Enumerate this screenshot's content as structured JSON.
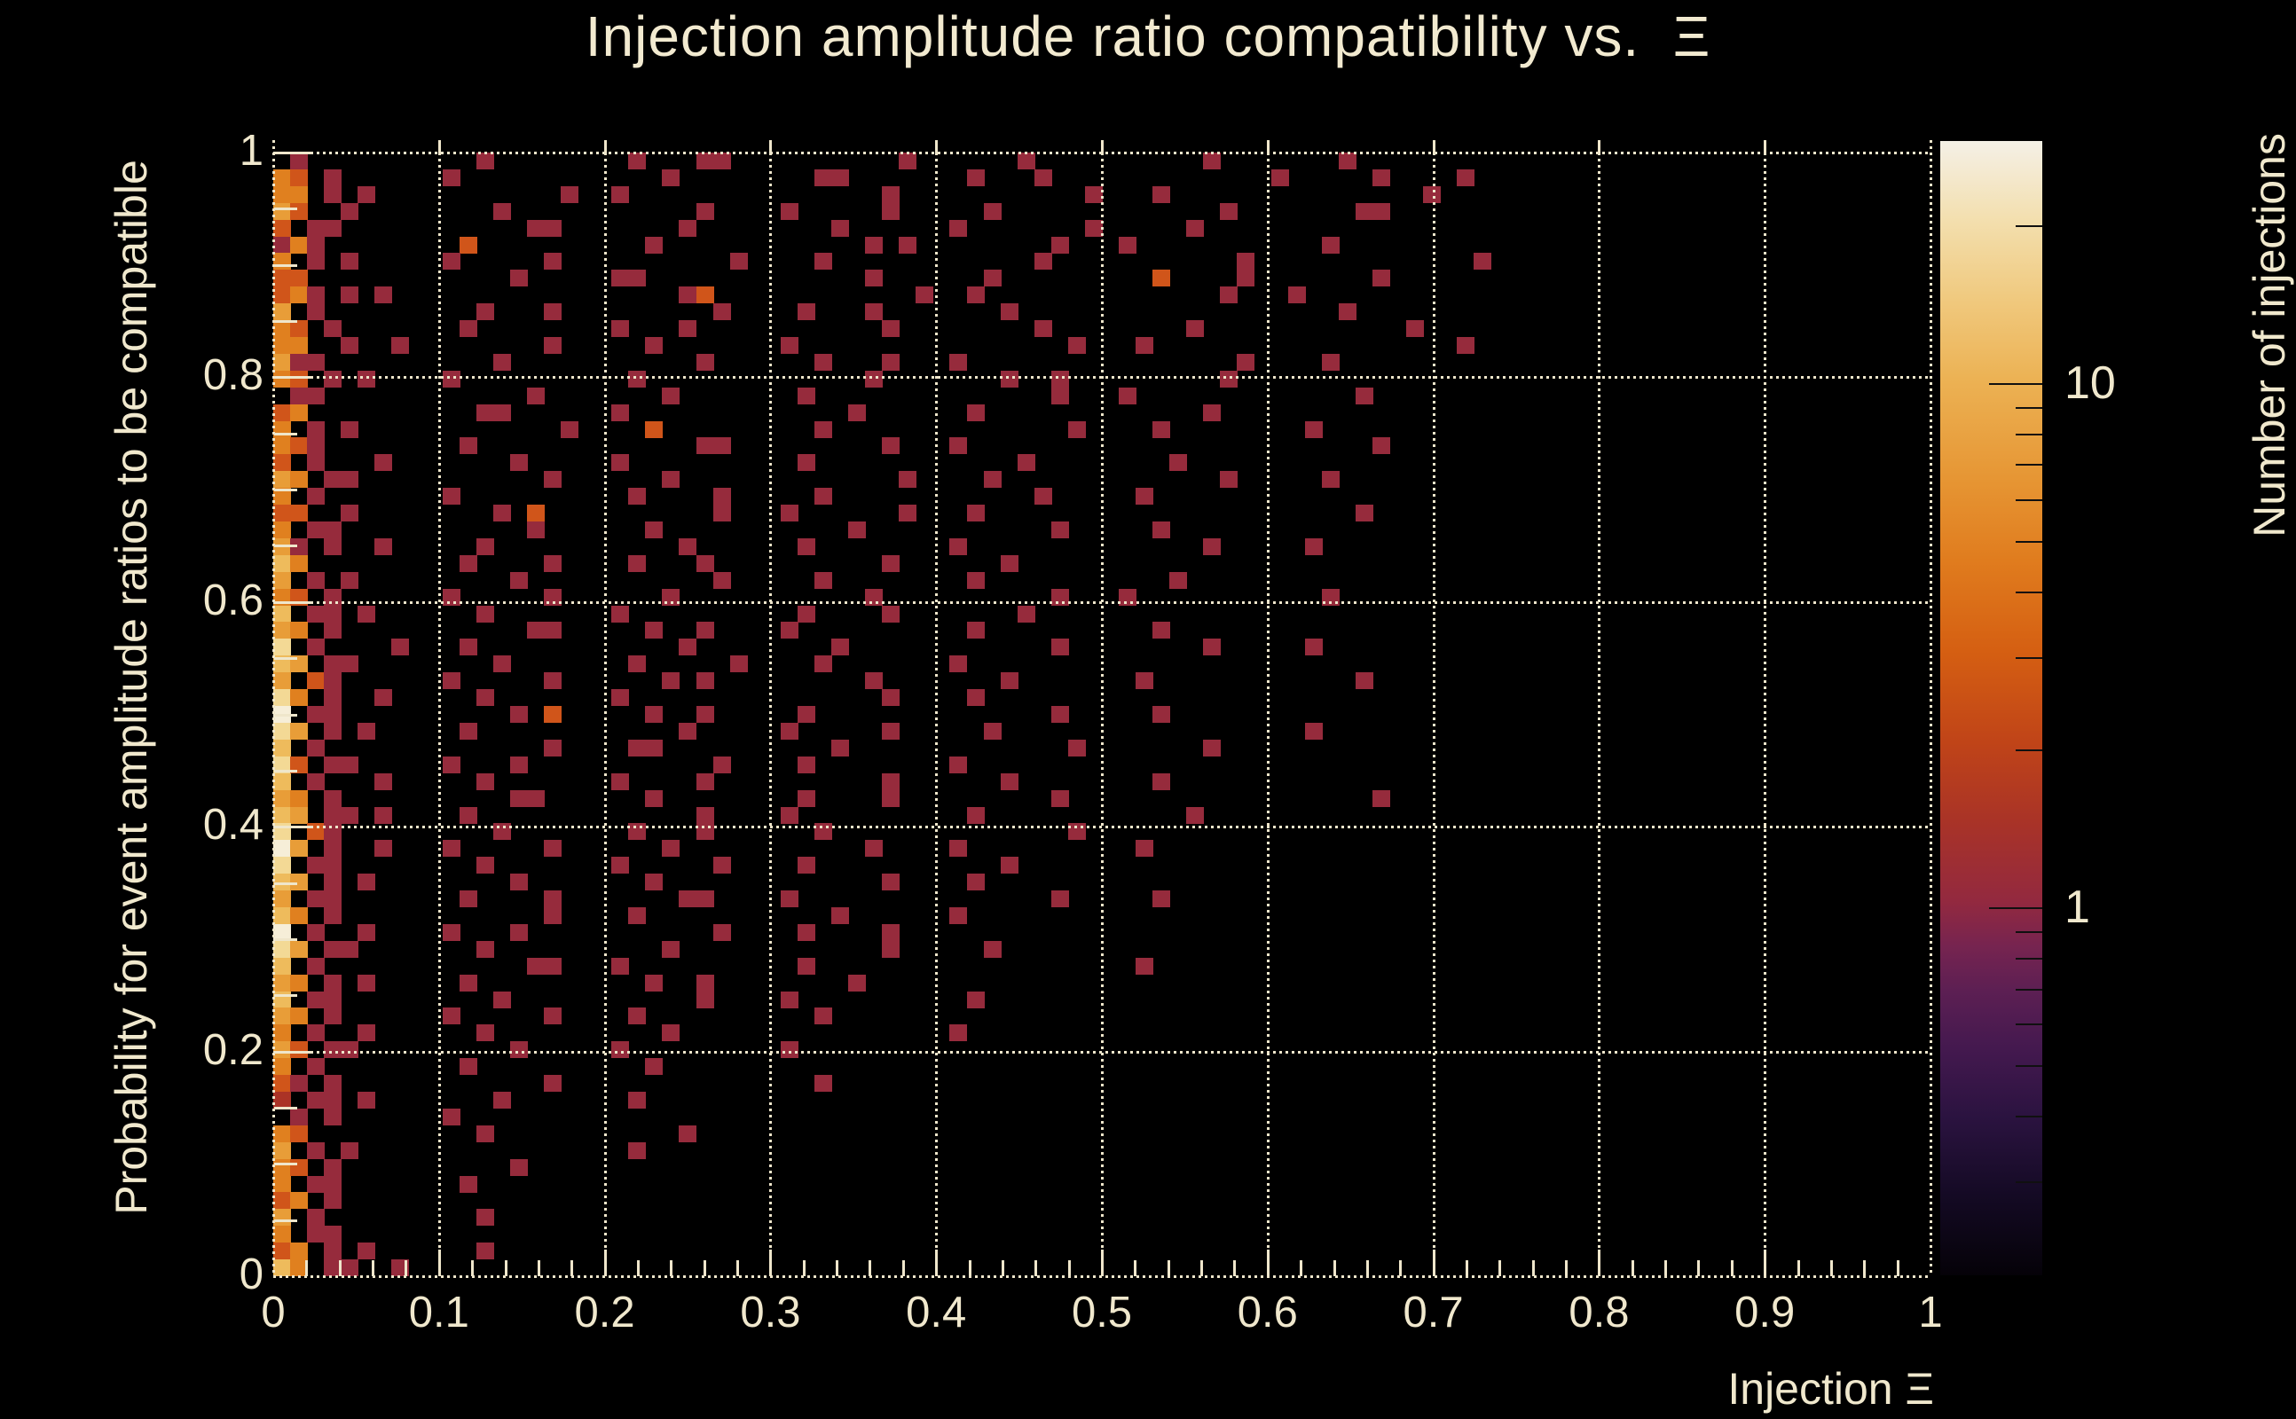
{
  "title": "Injection amplitude ratio compatibility vs.  Ξ",
  "axes": {
    "x": {
      "title": "Injection Ξ",
      "ticks": [
        {
          "v": 0,
          "label": "0"
        },
        {
          "v": 0.1,
          "label": "0.1"
        },
        {
          "v": 0.2,
          "label": "0.2"
        },
        {
          "v": 0.3,
          "label": "0.3"
        },
        {
          "v": 0.4,
          "label": "0.4"
        },
        {
          "v": 0.5,
          "label": "0.5"
        },
        {
          "v": 0.6,
          "label": "0.6"
        },
        {
          "v": 0.7,
          "label": "0.7"
        },
        {
          "v": 0.8,
          "label": "0.8"
        },
        {
          "v": 0.9,
          "label": "0.9"
        },
        {
          "v": 1,
          "label": "1"
        }
      ],
      "minor_step": 0.02,
      "range": [
        0,
        1
      ]
    },
    "y": {
      "title": "Probability for event amplitude ratios to be compatible",
      "ticks": [
        {
          "v": 0,
          "label": "0"
        },
        {
          "v": 0.2,
          "label": "0.2"
        },
        {
          "v": 0.4,
          "label": "0.4"
        },
        {
          "v": 0.6,
          "label": "0.6"
        },
        {
          "v": 0.8,
          "label": "0.8"
        },
        {
          "v": 1,
          "label": "1"
        }
      ],
      "minor_step": 0.05,
      "range": [
        0,
        1
      ]
    },
    "z": {
      "title": "Number of injections",
      "scale": "log",
      "major_ticks": [
        {
          "v": 10,
          "label": "10"
        },
        {
          "v": 1,
          "label": "1"
        }
      ],
      "minor_ticks": [
        20,
        9,
        8,
        7,
        6,
        5,
        4,
        3,
        2,
        0.9,
        0.8,
        0.7,
        0.6,
        0.5,
        0.4,
        0.3
      ],
      "range": [
        0.2,
        29
      ]
    }
  },
  "chart_data": {
    "type": "heatmap",
    "title": "Injection amplitude ratio compatibility vs. Ξ",
    "xlabel": "Injection Ξ",
    "ylabel": "Probability for event amplitude ratios to be compatible",
    "zlabel": "Number of injections",
    "xlim": [
      0,
      1
    ],
    "ylim": [
      0,
      1
    ],
    "grid": "dotted",
    "zscale": "log",
    "grid_size": {
      "cols": 98,
      "rows": 67
    },
    "legend_note": "cell level chars 1-8 map to counts 1,2,3,5,7,10,15,20+",
    "levels": {
      "1": "#962b3c",
      "2": "#ab3326",
      "3": "#d0551a",
      "4": "#e0801f",
      "5": "#e89d38",
      "6": "#eebb5c",
      "7": "#f3d995",
      "8": "#f6eed8"
    },
    "rows": [
      ".1........ ..1....... .1...11... .......1.. ....1..... .....1.... ...1...... ......",
      "43.1...... 1......... ...1...... ..11...... .1...1.... .........1 .....1.... 1.....",
      "44.1.1.... .......1.. 1......... ......1... ........1. ..1....... ........1. ......",
      "53..1..... ...1...... .....1.... 1.....1... ..1....... ......1... ....11.... ......",
      "3.11...... .....11... ....1..... ...1...... 1.......1. ....1..... .......... ......",
      "141....... .3........ ..1....... .....1.1.. ......1... 1......... ..1....... ......",
      "4.1.1..... 1.....1... .......1.. ..1....... .....1.... .......1.. .......... .1....",
      "33........ ....1..... 11........ .....1.... ..1....... ..3....1.. .....1.... ......",
      "341.1.1... .......... ....13.... ........1. .1........ ......1... 1......... ......",
      "5.1....... ..1...1... ......1... .1...1.... ...1...... .......... ...1...... ......",
      "43.1...... .1........ 1...1..... ......1... .....1.... ....1..... .......1.. ......",
      "44..1..1.. ......1... ..1....... 1......... .......1.. .1........ .......... 1.....",
      "511....... ...1...... .....1.... ..1...1... 1......... .......1.. ..1....... ......",
      "43.1.1.... 1......... .1........ .....1.... ...1..1... ......1... .......... ......",
      ".11....... .....1.... ...1...... .1........ ......1... 1......... ....1..... ......",
      "34........ ..11...... 1......... ....1..... .1........ .....1.... .......... ......",
      "4.1.1..... .......1.. ..3....... ..1....... .......1.. ..1....... .1........ ......",
      "431....... .1........ .....11... ......1... 1......... .......... .....1.... ......",
      "3.1...1... ....1..... 1......... .1........ ....1..... ...1...... .......... ......",
      "54.11..... ......1... ...1...... .......1.. ..1....... ......1... ..1....... ......",
      "4.1....... 1......... .1....1... ..1....... .....1.... .1........ .......... ......",
      "33..1..... ...1.3.... ......1... 1......1.. .1........ .......... ....1..... ......",
      "4.11...... .....1.... ..1....... ....1..... ......1... ..1....... .......... ......",
      "51.1..1... ..1....... ....1..... .1........ 1......... .....1.... .1........ ......",
      "64........ .1....1... .1...1.... ......1... ...1...... .......... .......... ......",
      "5.1.1..... ....1..... ......1... ..1....... .1........ ...1...... .......... ......",
      "43.1...... 1.....1... ...1...... .....1.... ......1... 1......... ..1....... ......",
      "6.11.1.... ..1....... 1......... .1....1... ....1..... .......... .......... ......",
      "54.1...... .....11... ..1..1.... 1......... .1........ ..1....... .......... ......",
      "7.1....1.. .1........ ....1..... ...1...... ......1... .....1.... .1........ ......",
      "65.11..... ...1...... .1.....1.. ..1....... 1......... .......... .......... ......",
      "5.31...... 1.....1... ...1.1.... .....1.... ...1...... .1........ ....1..... ......",
      "74.1..1... ..1....... 1......... ......1... .1........ .......... .......... ......",
      "8.11...... ....1.3... ..1..1.... .1........ ......1... ..1....... .......... ......",
      "75.1.1.... .1........ ....1..... 1.....1... ..1....... .......... .1........ ......",
      "6.1....... ......1... .11....... ...1...... .......1.. .....1.... .......... ......",
      "73.11..... 1...1..... ......1... .1........ 1......... .......... .......... ......",
      "6.1...1... ..1....... 1....1.... ......1... ...1...... ..1....... .......... ......",
      "54.1...... ....11.... ..1....... .1....1... ......1... .......... .....1.... ......",
      "65.11.1... .1........ .....1.... 1......... .1........ ....1..... .......... ......",
      "7.31...... ...1...... .1...1.... ..1....... .......1.. .......... .......... ......",
      "85.1..1... 1.....1... ...1...... .....1.... 1......... .1........ .......... ......",
      "7.11...... ..1....... 1.....1... .1........ ...1...... .......... .......... ......",
      "65.1.1.... ....1..... ..1....... ......1... .1........ .......... .......... ......",
      "5.11...... .1....1... ....11.... 1......... ......1... ..1....... .......... ......",
      "64.1...... ......1... .1........ ...1...... 1......... .......... .......... ......",
      "8.1..1.... 1...1..... ......1... .1....1... .......... .......... .......... ......",
      "75.11..... ..1....... ...1...... ......1... ..1....... .......... .......... ......",
      "6.1....... .....11... 1......... .1........ .......... .1........ .......... ......",
      "54.1.1.... .1........ ..1..1.... ....1..... .......... .......... .......... ......",
      "6.11...... ...1...... .....1.... 1......... .1........ .......... .......... ......",
      "54.1...... 1.....1... .1........ ..1....... .......... .......... .......... ......",
      "4.1..1.... ..1....... ...1...... .......... 1......... .......... .......... ......",
      "53.11..... ....1..... 1......... 1......... .......... .......... .......... ......",
      "4.1....... .1........ ..1....... .......... .......... .......... .......... ......",
      "31.1...... ......1... .......... ..1....... .......... .......... .......... ......",
      "2.11.1.... ...1...... .1........ .......... .......... .......... .......... ......",
      ".1.1...... 1......... .......... .......... .......... .......... .......... ......",
      "43........ ..1....... ....1..... .......... .......... .......... .......... ......",
      "5.1.1..... .......... .1........ .......... .......... .......... .......... ......",
      "43.1...... ....1..... .......... .......... .......... .......... .......... ......",
      "4.11...... .1........ .......... .......... .......... .......... .......... ......",
      "34.1...... .......... .......... .......... .......... .......... .......... ......",
      "5.1....... ..1....... .......... .......... .......... .......... .......... ......",
      "4.11...... .......... .......... .......... .......... .......... .......... ......",
      "34.1.1.... ..1....... .......... .......... .......... .......... .......... ......",
      "64.11..1.. .......... .......... .......... .......... .......... .......... ......"
    ],
    "colorbar": {
      "stops": [
        [
          0,
          "#050208"
        ],
        [
          7,
          "#140a24"
        ],
        [
          14,
          "#2b1340"
        ],
        [
          20,
          "#44194f"
        ],
        [
          25,
          "#5c1f53"
        ],
        [
          29,
          "#762450"
        ],
        [
          33,
          "#93293f"
        ],
        [
          40,
          "#a93327"
        ],
        [
          47,
          "#c04418"
        ],
        [
          55,
          "#d55f12"
        ],
        [
          63,
          "#e07c1e"
        ],
        [
          70,
          "#e69533"
        ],
        [
          79,
          "#ecb254"
        ],
        [
          86,
          "#f0c97e"
        ],
        [
          93,
          "#f3dfae"
        ],
        [
          100,
          "#f4f0e6"
        ]
      ],
      "labels": [
        "10",
        "1"
      ]
    }
  },
  "colors": {
    "background": "#000000",
    "text": "#f0e8cd",
    "grid": "#efe6cb",
    "count1": "#962b3c",
    "hot": "#f6eed8"
  }
}
